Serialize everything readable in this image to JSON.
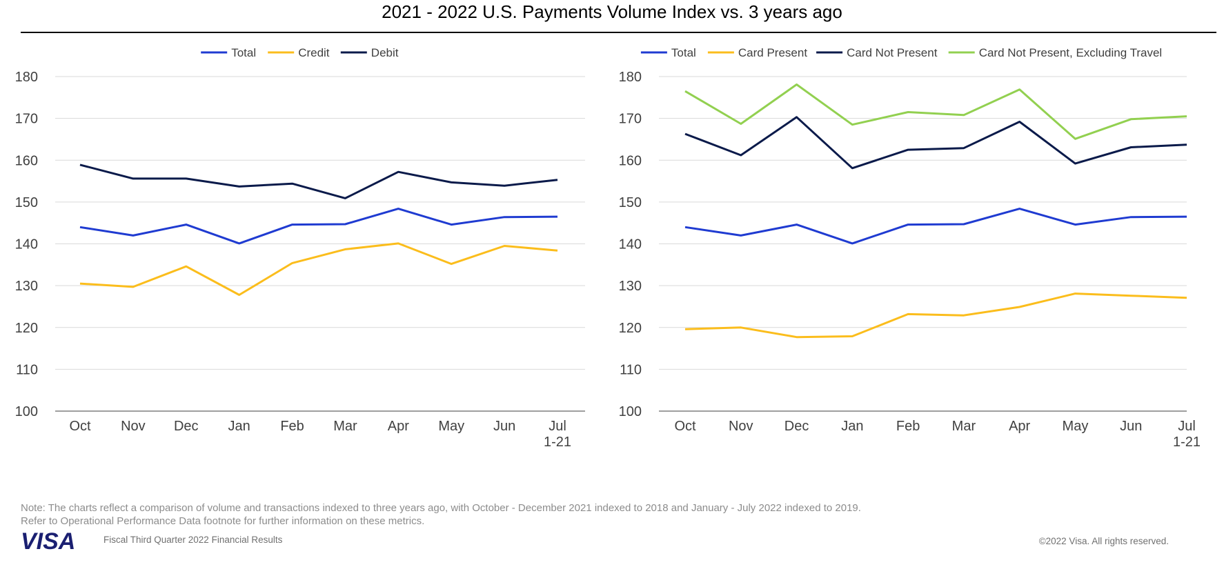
{
  "title": "2021 - 2022 U.S. Payments Volume Index vs. 3 years ago",
  "note": {
    "line1": "Note: The charts reflect a comparison of volume and transactions indexed to three years ago, with October - December 2021 indexed to 2018 and January - July 2022 indexed to 2019.",
    "line2": "Refer to Operational Performance Data footnote for further information on these metrics."
  },
  "footer": {
    "logo_text": "VISA",
    "left": "Fiscal Third Quarter 2022 Financial Results",
    "right": "©2022 Visa. All rights reserved."
  },
  "colors": {
    "total": "#1f3bd1",
    "credit": "#fbbd1c",
    "debit": "#0a1a4a",
    "card_not_present_ex_travel": "#92d050",
    "logo": "#1a1f71",
    "grid": "#d9d9d9",
    "axis": "#7f7f7f"
  },
  "chart_data": [
    {
      "type": "line",
      "categories": [
        "Oct",
        "Nov",
        "Dec",
        "Jan",
        "Feb",
        "Mar",
        "Apr",
        "May",
        "Jun",
        "Jul\n1-21"
      ],
      "ylim": [
        100,
        180
      ],
      "yticks": [
        100,
        110,
        120,
        130,
        140,
        150,
        160,
        170,
        180
      ],
      "legend_position": "top-center",
      "grid": true,
      "series": [
        {
          "name": "Total",
          "color": "#1f3bd1",
          "values": [
            144,
            142,
            144.6,
            140.1,
            144.6,
            144.7,
            148.4,
            144.6,
            146.4,
            146.5
          ]
        },
        {
          "name": "Credit",
          "color": "#fbbd1c",
          "values": [
            130.5,
            129.7,
            134.6,
            127.8,
            135.4,
            138.7,
            140.1,
            135.2,
            139.5,
            138.4
          ]
        },
        {
          "name": "Debit",
          "color": "#0a1a4a",
          "values": [
            158.9,
            155.6,
            155.6,
            153.7,
            154.4,
            150.9,
            157.2,
            154.7,
            153.9,
            155.3
          ]
        }
      ]
    },
    {
      "type": "line",
      "categories": [
        "Oct",
        "Nov",
        "Dec",
        "Jan",
        "Feb",
        "Mar",
        "Apr",
        "May",
        "Jun",
        "Jul\n1-21"
      ],
      "ylim": [
        100,
        180
      ],
      "yticks": [
        100,
        110,
        120,
        130,
        140,
        150,
        160,
        170,
        180
      ],
      "legend_position": "top-center",
      "grid": true,
      "series": [
        {
          "name": "Total",
          "color": "#1f3bd1",
          "values": [
            144,
            142,
            144.6,
            140.1,
            144.6,
            144.7,
            148.4,
            144.6,
            146.4,
            146.5
          ]
        },
        {
          "name": "Card Present",
          "color": "#fbbd1c",
          "values": [
            119.6,
            120,
            117.7,
            117.9,
            123.2,
            122.9,
            124.9,
            128.1,
            127.6,
            127.1
          ]
        },
        {
          "name": "Card Not Present",
          "color": "#0a1a4a",
          "values": [
            166.3,
            161.2,
            170.3,
            158.1,
            162.5,
            162.9,
            169.2,
            159.2,
            163.1,
            163.7
          ]
        },
        {
          "name": "Card Not Present, Excluding Travel",
          "color": "#92d050",
          "values": [
            176.5,
            168.7,
            178.1,
            168.5,
            171.5,
            170.8,
            176.9,
            165.1,
            169.8,
            170.5
          ]
        }
      ]
    }
  ]
}
